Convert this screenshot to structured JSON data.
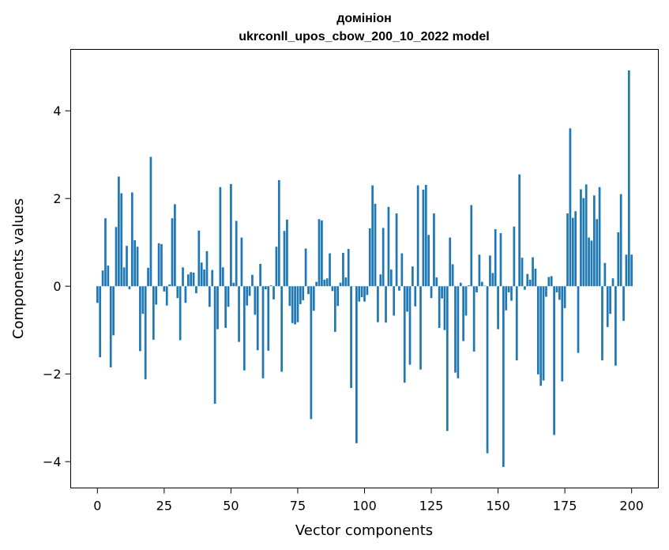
{
  "chart_data": {
    "type": "bar",
    "title": "домініон",
    "subtitle": "ukrconll_upos_cbow_200_10_2022 model",
    "xlabel": "Vector components",
    "ylabel": "Components values",
    "xlim": [
      -10,
      210
    ],
    "ylim": [
      -4.6,
      5.4
    ],
    "xticks": [
      0,
      25,
      50,
      75,
      100,
      125,
      150,
      175,
      200
    ],
    "yticks": [
      -4,
      -2,
      0,
      2,
      4
    ],
    "xtick_labels": [
      "0",
      "25",
      "50",
      "75",
      "100",
      "125",
      "150",
      "175",
      "200"
    ],
    "ytick_labels": [
      "−4",
      "−2",
      "0",
      "2",
      "4"
    ],
    "grid": false,
    "bar_color": "#1f77b4",
    "values": [
      -0.38,
      -1.62,
      0.36,
      1.55,
      0.47,
      -1.85,
      -1.12,
      1.35,
      2.5,
      2.12,
      0.43,
      0.92,
      -0.07,
      2.14,
      1.05,
      0.9,
      -1.48,
      -0.63,
      -2.12,
      0.42,
      2.95,
      -1.22,
      -0.42,
      0.98,
      0.96,
      -0.12,
      -0.44,
      0.04,
      1.55,
      1.87,
      -0.27,
      -1.23,
      0.43,
      -0.38,
      0.27,
      0.32,
      0.31,
      -0.16,
      1.27,
      0.54,
      0.38,
      0.8,
      -0.47,
      0.37,
      -2.68,
      -0.98,
      2.26,
      0.43,
      -0.95,
      -0.47,
      2.33,
      0.08,
      1.49,
      -1.27,
      1.11,
      -1.92,
      -0.44,
      -0.22,
      0.26,
      -0.65,
      -1.46,
      0.51,
      -2.1,
      -0.07,
      -1.47,
      0.02,
      -0.3,
      0.9,
      2.42,
      -1.95,
      1.26,
      1.52,
      -0.45,
      -0.84,
      -0.87,
      -0.82,
      -0.41,
      -0.32,
      0.86,
      -0.18,
      -3.03,
      -0.56,
      0.1,
      1.53,
      1.5,
      0.15,
      0.18,
      0.75,
      -0.11,
      -1.04,
      -0.45,
      0.08,
      0.76,
      0.2,
      0.85,
      -2.32,
      0.0,
      -3.58,
      -0.35,
      -0.25,
      -0.35,
      -0.2,
      1.32,
      2.3,
      1.88,
      -0.82,
      0.27,
      1.33,
      -0.83,
      1.81,
      0.38,
      -0.67,
      1.66,
      -0.1,
      0.75,
      -2.2,
      -0.58,
      -1.79,
      0.45,
      -0.46,
      2.3,
      -1.9,
      2.2,
      2.31,
      1.17,
      -0.27,
      1.66,
      0.2,
      -0.95,
      -0.28,
      -1.0,
      -3.3,
      1.11,
      0.5,
      -1.97,
      -2.1,
      0.08,
      -1.25,
      -0.67,
      0.02,
      1.85,
      -1.49,
      -0.14,
      0.72,
      0.1,
      0.01,
      -3.81,
      0.7,
      0.3,
      1.3,
      -0.98,
      1.21,
      -4.12,
      -0.55,
      -0.14,
      -0.33,
      1.36,
      -1.69,
      2.55,
      0.65,
      -0.08,
      0.28,
      0.15,
      0.66,
      0.4,
      -2.01,
      -2.27,
      -2.15,
      -0.24,
      0.21,
      0.23,
      -3.39,
      -0.14,
      -0.31,
      -2.17,
      -0.5,
      1.66,
      3.6,
      1.56,
      1.71,
      -1.52,
      2.21,
      2.01,
      2.32,
      1.11,
      1.04,
      2.07,
      1.53,
      2.26,
      -1.69,
      0.53,
      -0.93,
      -0.63,
      0.18,
      -1.81,
      1.23,
      2.1,
      -0.79,
      0.72,
      4.92,
      0.72
    ]
  }
}
